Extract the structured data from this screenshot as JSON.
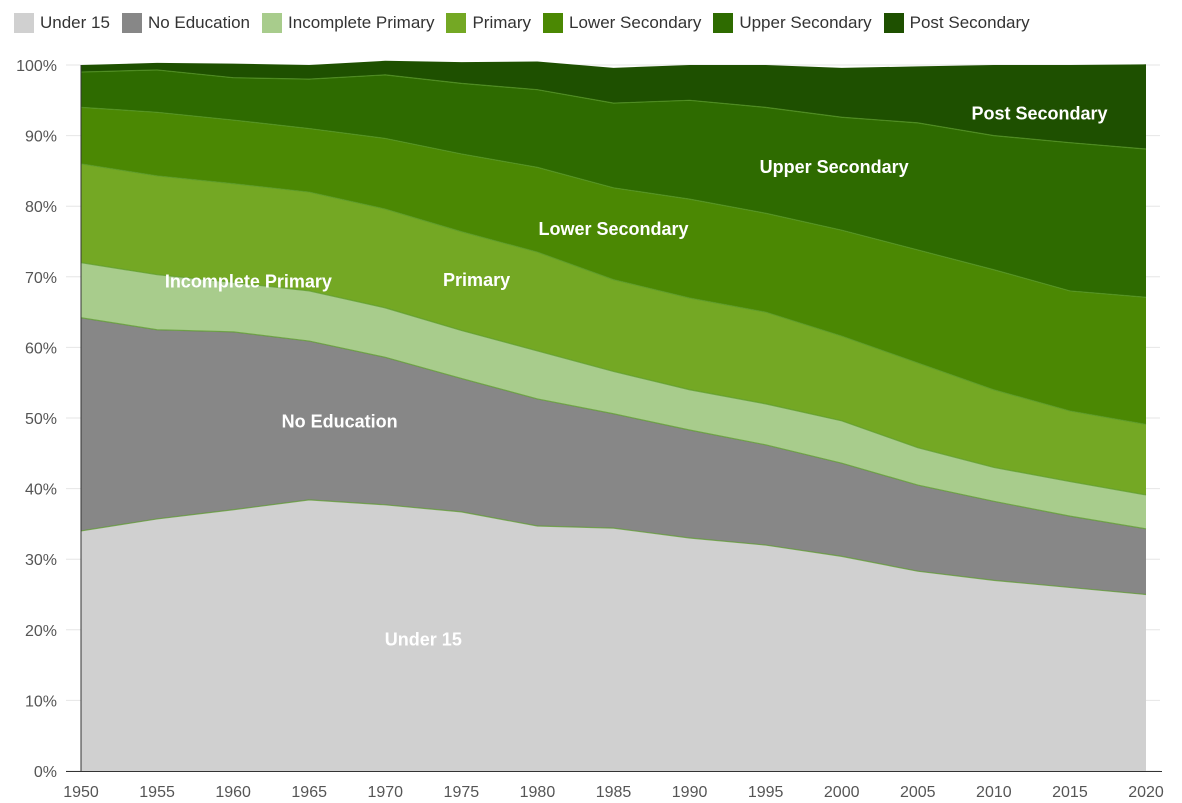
{
  "chart_data": {
    "type": "area",
    "stacked": true,
    "x": [
      "1950",
      "1955",
      "1960",
      "1965",
      "1970",
      "1975",
      "1980",
      "1985",
      "1990",
      "1995",
      "2000",
      "2005",
      "2010",
      "2015",
      "2020"
    ],
    "ylim": [
      0,
      100
    ],
    "y_ticks": [
      "0%",
      "10%",
      "20%",
      "30%",
      "40%",
      "50%",
      "60%",
      "70%",
      "80%",
      "90%",
      "100%"
    ],
    "grid": true,
    "legend_position": "top",
    "series": [
      {
        "name": "Under 15",
        "color": "#d0d0d0",
        "area_label": "Under 15",
        "values": [
          34,
          35.7,
          37,
          38.4,
          37.7,
          36.7,
          34.7,
          34.4,
          33,
          32,
          30.4,
          28.3,
          27,
          26,
          25
        ]
      },
      {
        "name": "No Education",
        "color": "#878787",
        "area_label": "No Education",
        "values": [
          30.2,
          26.8,
          25.2,
          22.5,
          20.9,
          18.9,
          18,
          16.2,
          15.3,
          14.2,
          13.2,
          12.2,
          11.2,
          10.1,
          9.3
        ]
      },
      {
        "name": "Incomplete Primary",
        "color": "#a8cc8c",
        "area_label": "Incomplete Primary",
        "values": [
          7.8,
          7.8,
          7,
          7.1,
          7,
          6.8,
          6.8,
          6,
          5.7,
          5.8,
          6,
          5.3,
          4.8,
          4.9,
          4.8
        ]
      },
      {
        "name": "Primary",
        "color": "#74a824",
        "area_label": "Primary",
        "values": [
          14,
          14,
          14,
          14,
          14,
          14,
          14,
          13,
          13,
          13,
          12,
          12,
          11,
          10,
          10
        ]
      },
      {
        "name": "Lower Secondary",
        "color": "#4b8803",
        "area_label": "Lower Secondary",
        "values": [
          8,
          9,
          9,
          9,
          10,
          11,
          12,
          13,
          14,
          14,
          15,
          16,
          17,
          17,
          18
        ]
      },
      {
        "name": "Upper Secondary",
        "color": "#2e6b00",
        "area_label": "Upper Secondary",
        "values": [
          5,
          6,
          6,
          7,
          9,
          10,
          11,
          12,
          14,
          15,
          16,
          18,
          19,
          21,
          21
        ]
      },
      {
        "name": "Post Secondary",
        "color": "#1e5000",
        "area_label": "Post Secondary",
        "values": [
          1,
          1,
          2,
          2,
          2,
          3,
          4,
          5,
          5,
          6,
          7,
          8,
          10,
          11,
          12
        ]
      }
    ]
  }
}
